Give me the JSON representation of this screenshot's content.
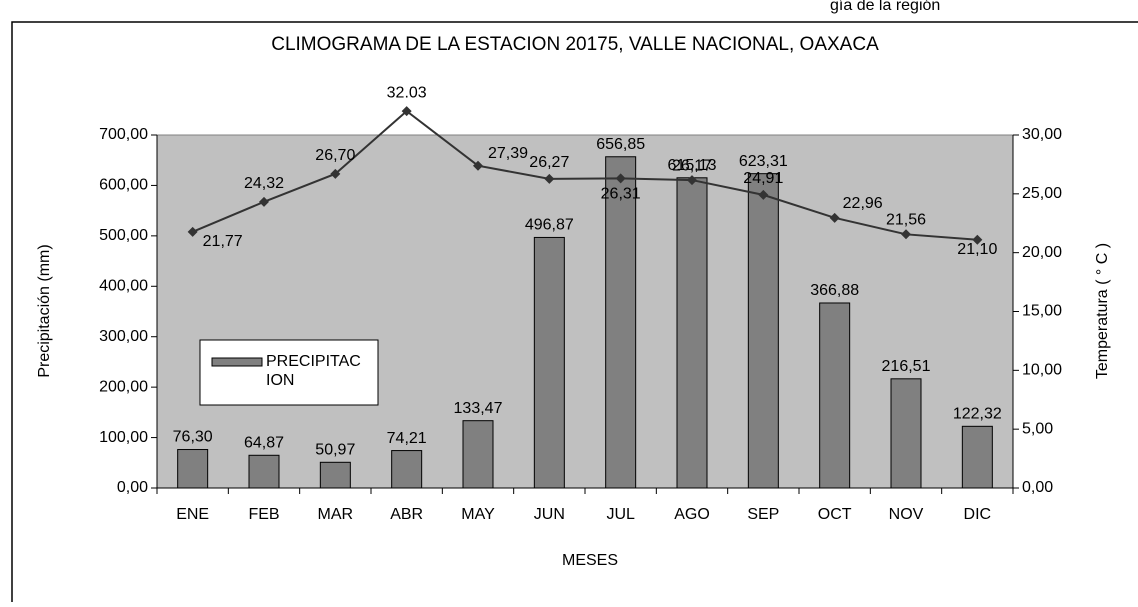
{
  "caption": "gía de la región",
  "chart_data": {
    "type": "bar",
    "title": "CLIMOGRAMA DE LA ESTACION 20175, VALLE NACIONAL, OAXACA",
    "x_label": "MESES",
    "y_label": "Precipitación (mm)",
    "y2_label": "Temperatura ( ° C )",
    "categories": [
      "ENE",
      "FEB",
      "MAR",
      "ABR",
      "MAY",
      "JUN",
      "JUL",
      "AGO",
      "SEP",
      "OCT",
      "NOV",
      "DIC"
    ],
    "series": [
      {
        "name": "PRECIPITACION",
        "type": "bar",
        "color": "#808080",
        "values": [
          76.3,
          64.87,
          50.97,
          74.21,
          133.47,
          496.87,
          656.85,
          615.13,
          623.31,
          366.88,
          216.51,
          122.32
        ],
        "value_labels": [
          "76,30",
          "64,87",
          "50,97",
          "74,21",
          "133,47",
          "496,87",
          "656,85",
          "615,13",
          "623,31",
          "366,88",
          "216,51",
          "122,32"
        ]
      },
      {
        "type": "line",
        "axis": "y2",
        "color": "#333333",
        "values": [
          21.77,
          24.32,
          26.7,
          32.03,
          27.39,
          26.27,
          26.31,
          26.17,
          24.91,
          22.96,
          21.56,
          21.1
        ],
        "value_labels": [
          "21,77",
          "24,32",
          "26,70",
          "32.03",
          "27,39",
          "26,27",
          "26,31",
          "26,17",
          "24,91",
          "22,96",
          "21,56",
          "21,10"
        ]
      }
    ],
    "ylim": [
      0,
      700
    ],
    "yticks": [
      {
        "value": 0,
        "label": "0,00"
      },
      {
        "value": 100,
        "label": "100,00"
      },
      {
        "value": 200,
        "label": "200,00"
      },
      {
        "value": 300,
        "label": "300,00"
      },
      {
        "value": 400,
        "label": "400,00"
      },
      {
        "value": 500,
        "label": "500,00"
      },
      {
        "value": 600,
        "label": "600,00"
      },
      {
        "value": 700,
        "label": "700,00"
      }
    ],
    "y2lim": [
      0,
      30
    ],
    "y2ticks": [
      {
        "value": 0,
        "label": "0,00"
      },
      {
        "value": 5,
        "label": "5,00"
      },
      {
        "value": 10,
        "label": "10,00"
      },
      {
        "value": 15,
        "label": "15,00"
      },
      {
        "value": 20,
        "label": "20,00"
      },
      {
        "value": 25,
        "label": "25,00"
      },
      {
        "value": 30,
        "label": "30,00"
      }
    ],
    "grid": false,
    "background": "#c0c0c0"
  }
}
